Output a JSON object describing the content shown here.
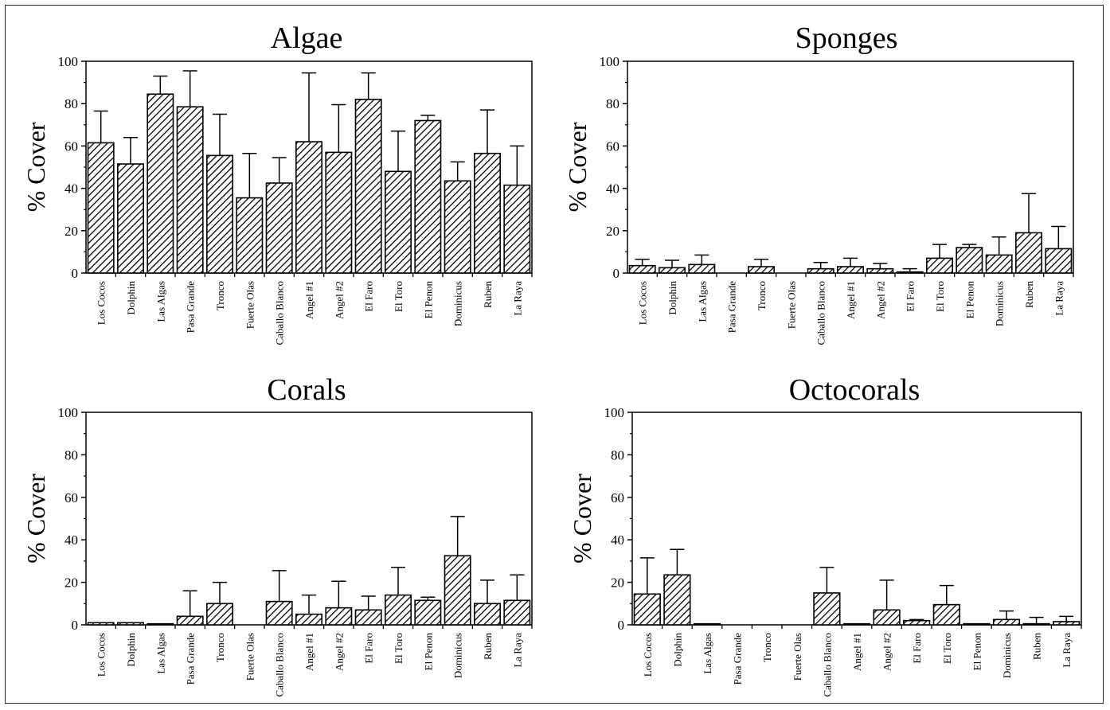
{
  "categories": [
    "Los Cocos",
    "Dolphin",
    "Las Algas",
    "Pasa Grande",
    "Tronco",
    "Fuerte Olas",
    "Caballo Blanco",
    "Angel #1",
    "Angel #2",
    "El Faro",
    "El Toro",
    "El Penon",
    "Dominicus",
    "Ruben",
    "La Raya"
  ],
  "ylabel": "% Cover",
  "chart_data": [
    {
      "type": "bar",
      "title": "Algae",
      "ylabel": "% Cover",
      "ylim": [
        0,
        100
      ],
      "yticks": [
        0,
        20,
        40,
        60,
        80,
        100
      ],
      "categories": [
        "Los Cocos",
        "Dolphin",
        "Las Algas",
        "Pasa Grande",
        "Tronco",
        "Fuerte Olas",
        "Caballo Blanco",
        "Angel #1",
        "Angel #2",
        "El Faro",
        "El Toro",
        "El Penon",
        "Dominicus",
        "Ruben",
        "La Raya"
      ],
      "values": [
        61.5,
        51.5,
        84.5,
        78.5,
        55.5,
        35.5,
        42.5,
        62,
        57,
        82,
        48,
        72,
        43.5,
        56.5,
        41.5
      ],
      "error": [
        15,
        12.5,
        8.5,
        17,
        19.5,
        21,
        12,
        32.5,
        22.5,
        12.5,
        19,
        2.5,
        9,
        20.5,
        18.5
      ]
    },
    {
      "type": "bar",
      "title": "Sponges",
      "ylabel": "% Cover",
      "ylim": [
        0,
        100
      ],
      "yticks": [
        0,
        20,
        40,
        60,
        80,
        100
      ],
      "categories": [
        "Los Cocos",
        "Dolphin",
        "Las Algas",
        "Pasa Grande",
        "Tronco",
        "Fuerte Olas",
        "Caballo Blanco",
        "Angel #1",
        "Angel #2",
        "El Faro",
        "El Toro",
        "El Penon",
        "Dominicus",
        "Ruben",
        "La Raya"
      ],
      "values": [
        3.5,
        2.5,
        4,
        0,
        3,
        0,
        2,
        3,
        2,
        0.5,
        7,
        12,
        8.5,
        19,
        11.5
      ],
      "error": [
        3,
        3.5,
        4.5,
        0,
        3.5,
        0,
        3,
        4,
        2.5,
        1.5,
        6.5,
        1.5,
        8.5,
        18.5,
        10.5
      ]
    },
    {
      "type": "bar",
      "title": "Corals",
      "ylabel": "% Cover",
      "ylim": [
        0,
        100
      ],
      "yticks": [
        0,
        20,
        40,
        60,
        80,
        100
      ],
      "categories": [
        "Los Cocos",
        "Dolphin",
        "Las Algas",
        "Pasa Grande",
        "Tronco",
        "Fuerte Olas",
        "Caballo Blanco",
        "Angel #1",
        "Angel #2",
        "El Faro",
        "El Toro",
        "El Penon",
        "Dominicus",
        "Ruben",
        "La Raya"
      ],
      "values": [
        1,
        1,
        0.5,
        4,
        10,
        0,
        11,
        5,
        8,
        7,
        14,
        11.5,
        32.5,
        10,
        11.5
      ],
      "error": [
        0,
        0,
        0,
        12,
        10,
        0,
        14.5,
        9,
        12.5,
        6.5,
        13,
        1.5,
        18.5,
        11,
        12
      ]
    },
    {
      "type": "bar",
      "title": "Octocorals",
      "ylabel": "% Cover",
      "ylim": [
        0,
        100
      ],
      "yticks": [
        0,
        20,
        40,
        60,
        80,
        100
      ],
      "categories": [
        "Los Cocos",
        "Dolphin",
        "Las Algas",
        "Pasa Grande",
        "Tronco",
        "Fuerte Olas",
        "Caballo Blanco",
        "Angel #1",
        "Angel #2",
        "El Faro",
        "El Toro",
        "El Penon",
        "Dominicus",
        "Ruben",
        "La Raya"
      ],
      "values": [
        14.5,
        23.5,
        0.5,
        0,
        0,
        0,
        15,
        0.5,
        7,
        2,
        9.5,
        0.5,
        2.5,
        0.5,
        1.5
      ],
      "error": [
        17,
        12,
        0,
        0,
        0,
        0,
        12,
        0,
        14,
        0.5,
        9,
        0,
        4,
        3,
        2.5
      ]
    }
  ]
}
